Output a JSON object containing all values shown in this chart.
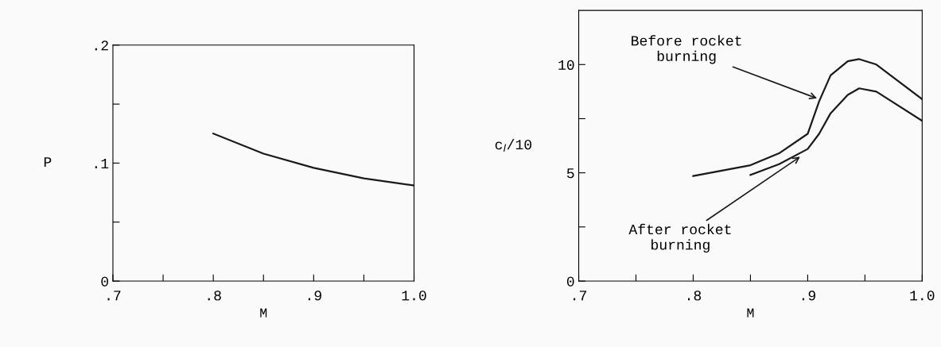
{
  "chart_data": [
    {
      "type": "line",
      "xlabel": "M",
      "ylabel": "P",
      "x": [
        0.8,
        0.85,
        0.9,
        0.95,
        1.0
      ],
      "series": [
        {
          "color": "#1a1a1a",
          "values": [
            0.125,
            0.108,
            0.096,
            0.087,
            0.081
          ]
        }
      ],
      "xlim": [
        0.7,
        1.0
      ],
      "ylim": [
        0,
        0.2
      ],
      "xticks": [
        {
          "value": 0.7,
          "label": ".7"
        },
        {
          "value": 0.75,
          "label": null
        },
        {
          "value": 0.8,
          "label": ".8"
        },
        {
          "value": 0.85,
          "label": null
        },
        {
          "value": 0.9,
          "label": ".9"
        },
        {
          "value": 0.95,
          "label": null
        },
        {
          "value": 1.0,
          "label": "1.0"
        }
      ],
      "yticks": [
        0,
        {
          "value": 0.05,
          "label": null
        },
        {
          "value": 0.1,
          "label": ".1"
        },
        {
          "value": 0.15,
          "label": null
        },
        {
          "value": 0.2,
          "label": ".2"
        }
      ],
      "grid": false,
      "legend": false
    },
    {
      "type": "line",
      "xlabel": "M",
      "ylabel": "c$_{l}$/10",
      "series": [
        {
          "color": "#1a1a1a",
          "x": [
            0.8,
            0.85,
            0.875,
            0.9,
            0.91,
            0.92,
            0.935,
            0.945,
            0.96,
            1.0
          ],
          "values": [
            4.85,
            5.35,
            5.9,
            6.8,
            8.3,
            9.5,
            10.15,
            10.25,
            10.0,
            8.4
          ]
        },
        {
          "color": "#1a1a1a",
          "x": [
            0.85,
            0.875,
            0.9,
            0.91,
            0.92,
            0.935,
            0.945,
            0.96,
            1.0
          ],
          "values": [
            4.9,
            5.4,
            6.1,
            6.8,
            7.75,
            8.6,
            8.9,
            8.75,
            7.4
          ]
        }
      ],
      "annotations": [
        {
          "text": "Before rocket\nburning",
          "x": 0.91,
          "y": 8.4
        },
        {
          "text": "After rocket\nburning",
          "x": 0.895,
          "y": 5.8
        }
      ],
      "xlim": [
        0.7,
        1.0
      ],
      "ylim": [
        0,
        12.5
      ],
      "xticks": [
        {
          "value": 0.7,
          "label": ".7"
        },
        {
          "value": 0.75,
          "label": null
        },
        {
          "value": 0.8,
          "label": ".8"
        },
        {
          "value": 0.85,
          "label": null
        },
        {
          "value": 0.9,
          "label": ".9"
        },
        {
          "value": 0.95,
          "label": null
        },
        {
          "value": 1.0,
          "label": "1.0"
        }
      ],
      "yticks": [
        0,
        {
          "value": 2.5,
          "label": null
        },
        5,
        {
          "value": 7.5,
          "label": null
        },
        10
      ],
      "grid": false,
      "legend": false
    }
  ]
}
